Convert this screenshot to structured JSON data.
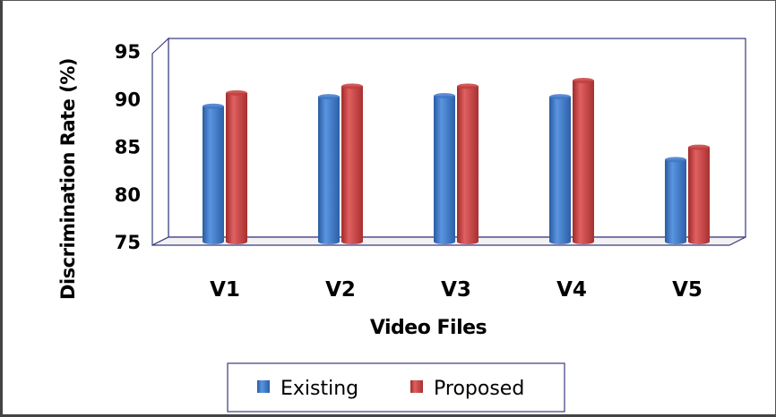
{
  "chart_data": {
    "type": "bar",
    "title": "",
    "xlabel": "Video Files",
    "ylabel": "Discrimination Rate (%)",
    "categories": [
      "V1",
      "V2",
      "V3",
      "V4",
      "V5"
    ],
    "series": [
      {
        "name": "Existing",
        "color": "#3f78c9",
        "values": [
          89.2,
          90.2,
          90.3,
          90.2,
          83.6
        ]
      },
      {
        "name": "Proposed",
        "color": "#c43d3d",
        "values": [
          90.6,
          91.3,
          91.3,
          91.9,
          84.9
        ]
      }
    ],
    "ylim": [
      75,
      95
    ],
    "yticks": [
      75,
      80,
      85,
      90,
      95
    ],
    "grid": false,
    "legend": "bottom",
    "style": "3d-cylinder"
  }
}
